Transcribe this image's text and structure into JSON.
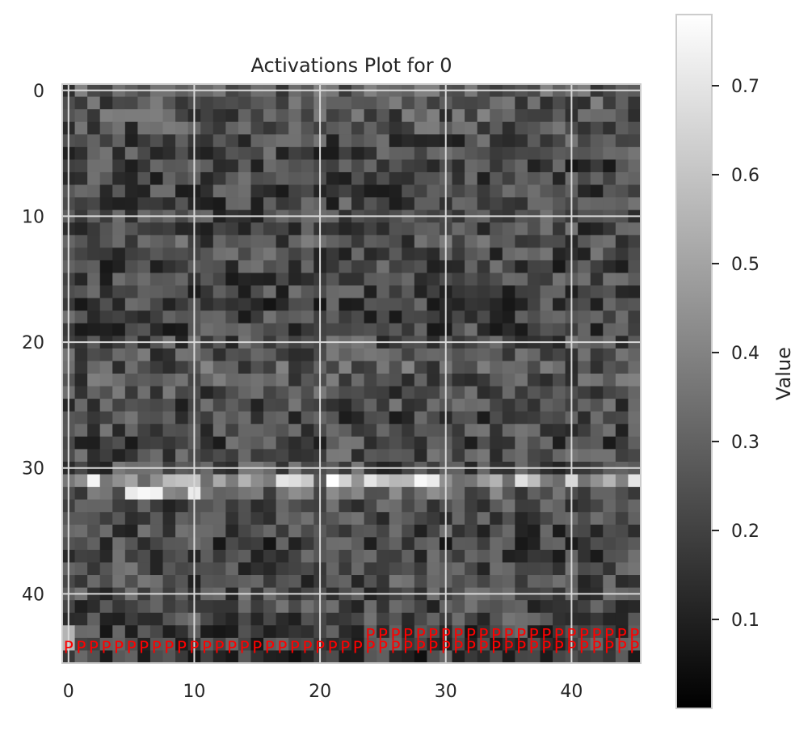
{
  "chart_data": {
    "type": "heatmap",
    "title": "Activations Plot for 0",
    "colormap": "gray",
    "grid": true,
    "n_rows": 46,
    "n_cols": 46,
    "xlim": [
      -0.5,
      45.5
    ],
    "ylim": [
      45.5,
      -0.5
    ],
    "x_ticks": [
      0,
      10,
      20,
      30,
      40
    ],
    "x_tick_labels": [
      "0",
      "10",
      "20",
      "30",
      "40"
    ],
    "y_ticks": [
      0,
      10,
      20,
      30,
      40
    ],
    "y_tick_labels": [
      "0",
      "10",
      "20",
      "30",
      "40"
    ],
    "colorbar": {
      "label": "Value",
      "vmin": 0.0,
      "vmax": 0.78,
      "ticks": [
        0.1,
        0.2,
        0.3,
        0.4,
        0.5,
        0.6,
        0.7
      ],
      "tick_labels": [
        "0.1",
        "0.2",
        "0.3",
        "0.4",
        "0.5",
        "0.6",
        "0.7"
      ]
    },
    "row_profile": [
      0.28,
      0.26,
      0.27,
      0.24,
      0.23,
      0.22,
      0.21,
      0.22,
      0.21,
      0.22,
      0.23,
      0.22,
      0.25,
      0.23,
      0.21,
      0.22,
      0.22,
      0.2,
      0.22,
      0.21,
      0.24,
      0.25,
      0.27,
      0.26,
      0.24,
      0.23,
      0.22,
      0.23,
      0.22,
      0.24,
      0.24,
      0.38,
      0.3,
      0.22,
      0.23,
      0.22,
      0.2,
      0.22,
      0.24,
      0.23,
      0.24,
      0.22,
      0.23,
      0.2,
      0.19,
      0.18
    ],
    "bright_cells": [
      [
        31,
        2,
        0.75
      ],
      [
        31,
        10,
        0.6
      ],
      [
        31,
        17,
        0.7
      ],
      [
        31,
        18,
        0.68
      ],
      [
        31,
        21,
        0.78
      ],
      [
        31,
        28,
        0.76
      ],
      [
        31,
        29,
        0.72
      ],
      [
        31,
        40,
        0.66
      ],
      [
        31,
        45,
        0.7
      ],
      [
        32,
        5,
        0.72
      ],
      [
        32,
        6,
        0.76
      ],
      [
        32,
        7,
        0.74
      ],
      [
        32,
        10,
        0.72
      ],
      [
        43,
        0,
        0.55
      ],
      [
        44,
        0,
        0.55
      ]
    ],
    "token_markers": [
      {
        "label": "P",
        "row": 44,
        "col_start": 0,
        "col_end": 23
      },
      {
        "label": "P",
        "row": 43,
        "col_start": 24,
        "col_end": 45
      },
      {
        "label": "P",
        "row": 44,
        "col_start": 24,
        "col_end": 45
      }
    ]
  }
}
